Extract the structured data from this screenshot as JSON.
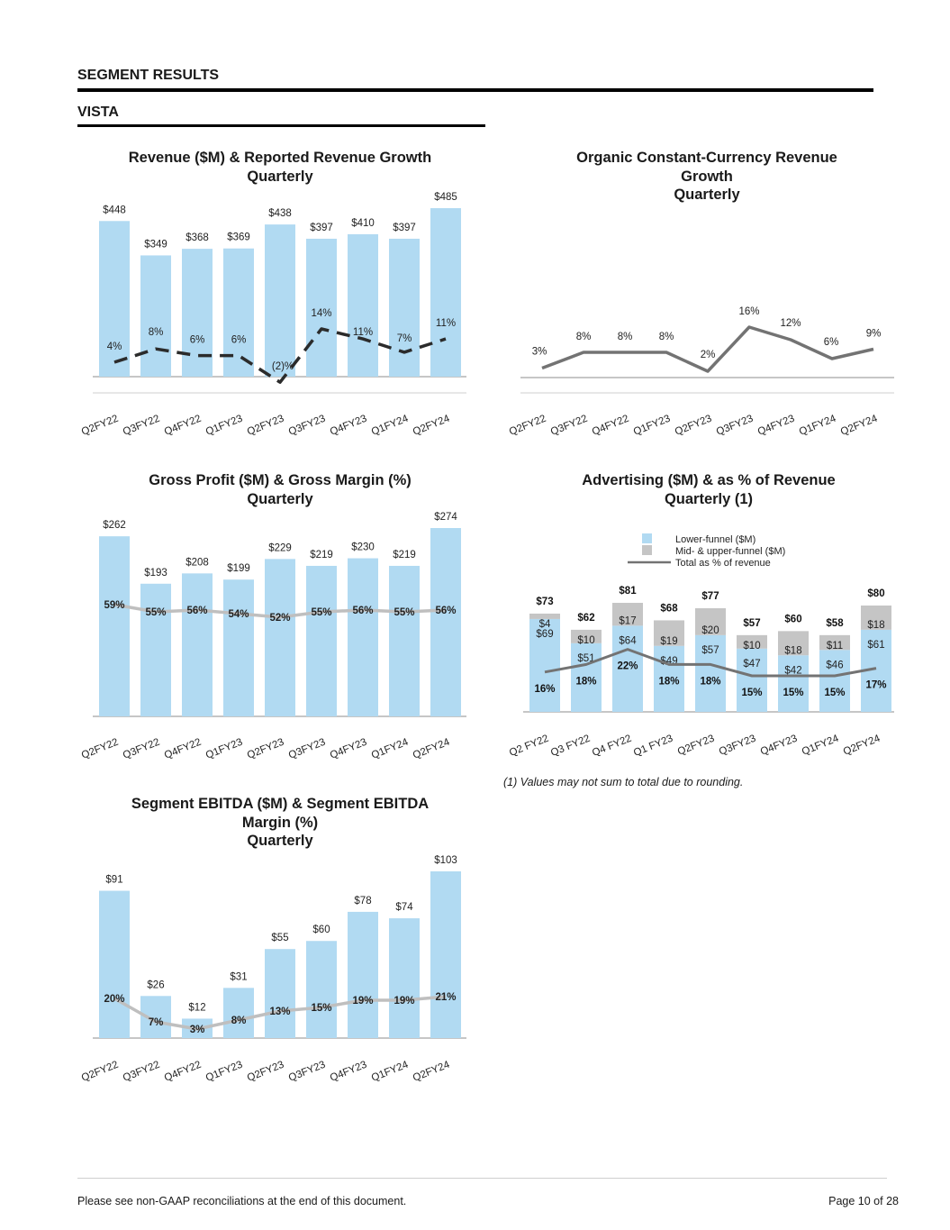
{
  "header": {
    "section": "SEGMENT RESULTS",
    "subsection": "VISTA"
  },
  "colors": {
    "bar": "#b1daf2",
    "bar_secondary": "#c5c5c5",
    "line_dark": "#737373",
    "line_light": "#bfbfbf",
    "axis": "#8c8c8c"
  },
  "footnote": "(1) Values may not sum to total due to rounding.",
  "footer": {
    "note": "Please see non-GAAP reconciliations at the end of this document.",
    "page": "Page 10 of 28"
  },
  "chart_data": [
    {
      "id": "revenue",
      "type": "bar",
      "title_lines": [
        "Revenue ($M) & Reported Revenue Growth",
        "Quarterly"
      ],
      "categories": [
        "Q2FY22",
        "Q3FY22",
        "Q4FY22",
        "Q1FY23",
        "Q2FY23",
        "Q3FY23",
        "Q4FY23",
        "Q1FY24",
        "Q2FY24"
      ],
      "values": [
        448,
        349,
        368,
        369,
        438,
        397,
        410,
        397,
        485
      ],
      "value_labels": [
        "$448",
        "$349",
        "$368",
        "$369",
        "$438",
        "$397",
        "$410",
        "$397",
        "$485"
      ],
      "line": {
        "style": "dashed",
        "values": [
          4,
          8,
          6,
          6,
          -2,
          14,
          11,
          7,
          11
        ],
        "labels": [
          "4%",
          "8%",
          "6%",
          "6%",
          "(2)%",
          "14%",
          "11%",
          "7%",
          "11%"
        ]
      }
    },
    {
      "id": "organic",
      "type": "line",
      "title_lines": [
        "Organic Constant-Currency Revenue",
        "Growth",
        "Quarterly"
      ],
      "categories": [
        "Q2FY22",
        "Q3FY22",
        "Q4FY22",
        "Q1FY23",
        "Q2FY23",
        "Q3FY23",
        "Q4FY23",
        "Q1FY24",
        "Q2FY24"
      ],
      "values": [
        3,
        8,
        8,
        8,
        2,
        16,
        12,
        6,
        9
      ],
      "labels": [
        "3%",
        "8%",
        "8%",
        "8%",
        "2%",
        "16%",
        "12%",
        "6%",
        "9%"
      ]
    },
    {
      "id": "gross_profit",
      "type": "bar",
      "title_lines": [
        "Gross Profit ($M) & Gross Margin (%)",
        "Quarterly"
      ],
      "categories": [
        "Q2FY22",
        "Q3FY22",
        "Q4FY22",
        "Q1FY23",
        "Q2FY23",
        "Q3FY23",
        "Q4FY23",
        "Q1FY24",
        "Q2FY24"
      ],
      "values": [
        262,
        193,
        208,
        199,
        229,
        219,
        230,
        219,
        274
      ],
      "value_labels": [
        "$262",
        "$193",
        "$208",
        "$199",
        "$229",
        "$219",
        "$230",
        "$219",
        "$274"
      ],
      "line": {
        "style": "solid",
        "values": [
          59,
          55,
          56,
          54,
          52,
          55,
          56,
          55,
          56
        ],
        "labels": [
          "59%",
          "55%",
          "56%",
          "54%",
          "52%",
          "55%",
          "56%",
          "55%",
          "56%"
        ]
      }
    },
    {
      "id": "advertising",
      "type": "bar",
      "stacked": true,
      "title_lines": [
        "Advertising ($M) & as % of Revenue",
        "Quarterly (1)"
      ],
      "categories": [
        "Q2 FY22",
        "Q3 FY22",
        "Q4 FY22",
        "Q1 FY23",
        "Q2FY23",
        "Q3FY23",
        "Q4FY23",
        "Q1FY24",
        "Q2FY24"
      ],
      "legend": [
        "Lower-funnel ($M)",
        "Mid- & upper-funnel ($M)",
        "Total as % of revenue"
      ],
      "series": [
        {
          "name": "Lower-funnel ($M)",
          "values": [
            69,
            51,
            64,
            49,
            57,
            47,
            42,
            46,
            61
          ],
          "labels": [
            "$69",
            "$51",
            "$64",
            "$49",
            "$57",
            "$47",
            "$42",
            "$46",
            "$61"
          ]
        },
        {
          "name": "Mid- & upper-funnel ($M)",
          "values": [
            4,
            10,
            17,
            19,
            20,
            10,
            18,
            11,
            18
          ],
          "labels": [
            "$4",
            "$10",
            "$17",
            "$19",
            "$20",
            "$10",
            "$18",
            "$11",
            "$18"
          ]
        }
      ],
      "totals": [
        73,
        62,
        81,
        68,
        77,
        57,
        60,
        58,
        80
      ],
      "total_labels": [
        "$73",
        "$62",
        "$81",
        "$68",
        "$77",
        "$57",
        "$60",
        "$58",
        "$80"
      ],
      "line": {
        "name": "Total as % of revenue",
        "style": "solid",
        "values": [
          16,
          18,
          22,
          18,
          18,
          15,
          15,
          15,
          17
        ],
        "labels": [
          "16%",
          "18%",
          "22%",
          "18%",
          "18%",
          "15%",
          "15%",
          "15%",
          "17%"
        ]
      }
    },
    {
      "id": "ebitda",
      "type": "bar",
      "title_lines": [
        "Segment EBITDA ($M) & Segment EBITDA",
        "Margin (%)",
        "Quarterly"
      ],
      "categories": [
        "Q2FY22",
        "Q3FY22",
        "Q4FY22",
        "Q1FY23",
        "Q2FY23",
        "Q3FY23",
        "Q4FY23",
        "Q1FY24",
        "Q2FY24"
      ],
      "values": [
        91,
        26,
        12,
        31,
        55,
        60,
        78,
        74,
        103
      ],
      "value_labels": [
        "$91",
        "$26",
        "$12",
        "$31",
        "$55",
        "$60",
        "$78",
        "$74",
        "$103"
      ],
      "line": {
        "style": "solid",
        "values": [
          20,
          7,
          3,
          8,
          13,
          15,
          19,
          19,
          21
        ],
        "labels": [
          "20%",
          "7%",
          "3%",
          "8%",
          "13%",
          "15%",
          "19%",
          "19%",
          "21%"
        ]
      }
    }
  ]
}
